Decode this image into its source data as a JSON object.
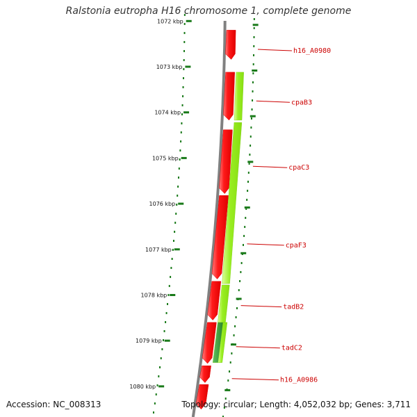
{
  "title": "Ralstonia eutropha H16 chromosome 1, complete genome",
  "footer": {
    "accession": "Accession: NC_008313",
    "stats": "Topology: circular; Length: 4,052,032 bp; Genes: 3,711"
  },
  "colors": {
    "backbone": "#808080",
    "forward_gene": "#ff1a1a",
    "forward_gene_highlight": "#ff8080",
    "reverse_gene": "#99ee22",
    "reverse_gene_highlight": "#ddff99",
    "reverse_gene_alt": "#2d8a2d",
    "tick": "#1a7a1a",
    "label": "#cc0000"
  },
  "axis": {
    "unit": "kbp",
    "ticks": [
      {
        "kbp": 1072,
        "label": "1072 kbp"
      },
      {
        "kbp": 1073,
        "label": "1073 kbp"
      },
      {
        "kbp": 1074,
        "label": "1074 kbp"
      },
      {
        "kbp": 1075,
        "label": "1075 kbp"
      },
      {
        "kbp": 1076,
        "label": "1076 kbp"
      },
      {
        "kbp": 1077,
        "label": "1077 kbp"
      },
      {
        "kbp": 1078,
        "label": "1078 kbp"
      },
      {
        "kbp": 1079,
        "label": "1079 kbp"
      },
      {
        "kbp": 1080,
        "label": "1080 kbp"
      }
    ]
  },
  "genes": [
    {
      "strand": "forward",
      "start_kbp": 1072.2,
      "end_kbp": 1072.84
    },
    {
      "strand": "forward",
      "start_kbp": 1073.12,
      "end_kbp": 1074.17
    },
    {
      "strand": "forward",
      "start_kbp": 1074.38,
      "end_kbp": 1075.78
    },
    {
      "strand": "forward",
      "start_kbp": 1075.82,
      "end_kbp": 1077.65
    },
    {
      "strand": "forward",
      "start_kbp": 1077.7,
      "end_kbp": 1078.55
    },
    {
      "strand": "forward",
      "start_kbp": 1078.6,
      "end_kbp": 1079.5
    },
    {
      "strand": "forward",
      "start_kbp": 1079.55,
      "end_kbp": 1079.92
    },
    {
      "strand": "forward",
      "start_kbp": 1079.96,
      "end_kbp": 1080.5
    },
    {
      "strand": "reverse",
      "start_kbp": 1073.12,
      "end_kbp": 1074.17,
      "color_key": "reverse_gene"
    },
    {
      "strand": "reverse",
      "start_kbp": 1074.22,
      "end_kbp": 1077.75,
      "color_key": "reverse_gene"
    },
    {
      "strand": "reverse",
      "start_kbp": 1077.78,
      "end_kbp": 1078.6,
      "color_key": "reverse_gene"
    },
    {
      "strand": "reverse",
      "start_kbp": 1078.6,
      "end_kbp": 1079.48,
      "color_key": "reverse_gene_alt"
    },
    {
      "strand": "reverse",
      "start_kbp": 1078.6,
      "end_kbp": 1079.48,
      "color_key": "reverse_gene",
      "sub": true
    }
  ],
  "gene_labels": [
    {
      "text": "h16_A0980",
      "kbp": 1072.62
    },
    {
      "text": "cpaB3",
      "kbp": 1073.75
    },
    {
      "text": "cpaC3",
      "kbp": 1075.18
    },
    {
      "text": "cpaF3",
      "kbp": 1076.88
    },
    {
      "text": "tadB2",
      "kbp": 1078.23
    },
    {
      "text": "tadC2",
      "kbp": 1079.13
    },
    {
      "text": "h16_A0986",
      "kbp": 1079.83
    }
  ]
}
